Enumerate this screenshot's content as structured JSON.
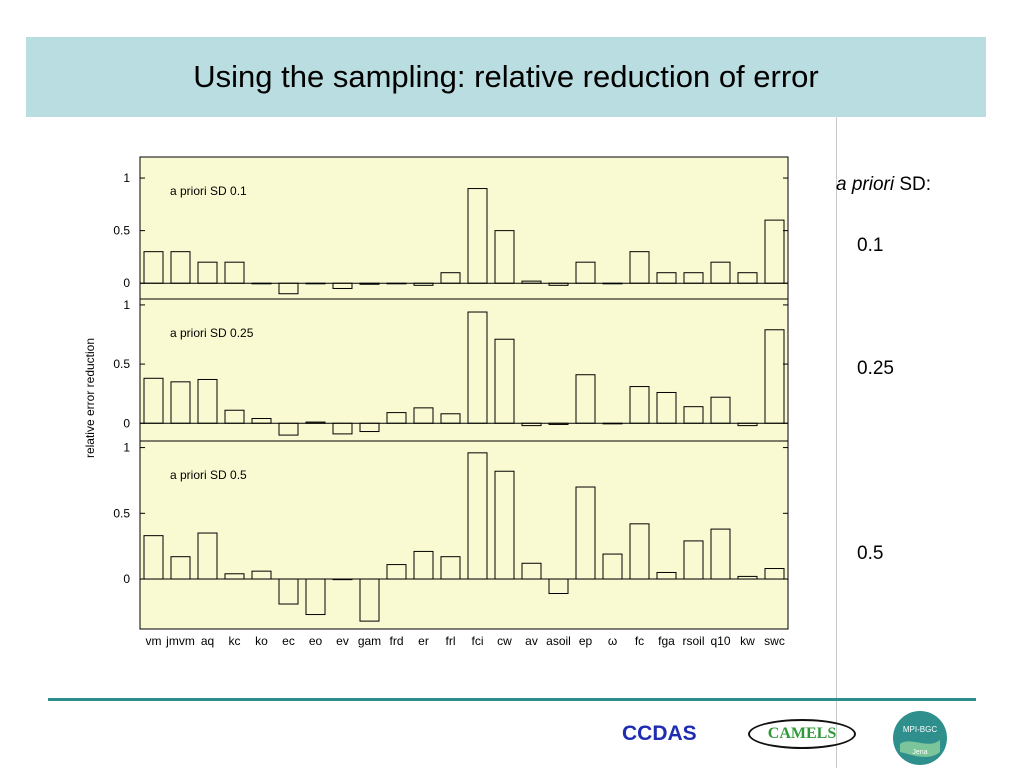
{
  "slide": {
    "title": "Using the sampling: relative reduction of error",
    "side_heading_italic": "a priori",
    "side_heading_rest": " SD:",
    "side_values": [
      "0.1",
      "0.25",
      "0.5"
    ]
  },
  "footer": {
    "ccdas": "CCDAS",
    "camels": "CAMELS",
    "mpi_line1": "MPI-BGC",
    "mpi_line2": "Jena"
  },
  "colors": {
    "title_band": "#b9dde0",
    "plot_background": "#fafad2",
    "footer_rule": "#2e8e8e",
    "ccdas_text": "#1f2db0",
    "camels_text": "#2f9a3a"
  },
  "chart_data": [
    {
      "type": "bar",
      "annotation": "a priori SD 0.1",
      "ylabel": "relative error reduction",
      "yticks": [
        "1",
        "0.5",
        "0"
      ],
      "ylim": [
        -0.15,
        1.2
      ],
      "categories": [
        "vm",
        "jmvm",
        "aq",
        "kc",
        "ko",
        "ec",
        "eo",
        "ev",
        "gam",
        "frd",
        "er",
        "frl",
        "fci",
        "cw",
        "av",
        "asoil",
        "ep",
        "ω",
        "fc",
        "fga",
        "rsoil",
        "q10",
        "kw",
        "swc"
      ],
      "values": [
        0.3,
        0.3,
        0.2,
        0.2,
        0,
        -0.1,
        0,
        -0.05,
        -0.01,
        0,
        -0.02,
        0.1,
        0.9,
        0.5,
        0.02,
        -0.02,
        0.2,
        0,
        0.3,
        0.1,
        0.1,
        0.2,
        0.1,
        0.6
      ]
    },
    {
      "type": "bar",
      "annotation": "a priori SD 0.25",
      "yticks": [
        "1",
        "0.5",
        "0"
      ],
      "ylim": [
        -0.15,
        1.05
      ],
      "categories": [
        "vm",
        "jmvm",
        "aq",
        "kc",
        "ko",
        "ec",
        "eo",
        "ev",
        "gam",
        "frd",
        "er",
        "frl",
        "fci",
        "cw",
        "av",
        "asoil",
        "ep",
        "ω",
        "fc",
        "fga",
        "rsoil",
        "q10",
        "kw",
        "swc"
      ],
      "values": [
        0.38,
        0.35,
        0.37,
        0.11,
        0.04,
        -0.1,
        0.01,
        -0.09,
        -0.07,
        0.09,
        0.13,
        0.08,
        0.94,
        0.71,
        -0.02,
        -0.01,
        0.41,
        0,
        0.31,
        0.26,
        0.14,
        0.22,
        -0.02,
        0.79
      ]
    },
    {
      "type": "bar",
      "annotation": "a priori SD 0.5",
      "yticks": [
        "1",
        "0.5",
        "0"
      ],
      "ylim": [
        -0.38,
        1.05
      ],
      "categories": [
        "vm",
        "jmvm",
        "aq",
        "kc",
        "ko",
        "ec",
        "eo",
        "ev",
        "gam",
        "frd",
        "er",
        "frl",
        "fci",
        "cw",
        "av",
        "asoil",
        "ep",
        "ω",
        "fc",
        "fga",
        "rsoil",
        "q10",
        "kw",
        "swc"
      ],
      "values": [
        0.33,
        0.17,
        0.35,
        0.04,
        0.06,
        -0.19,
        -0.27,
        0,
        -0.32,
        0.11,
        0.21,
        0.17,
        0.96,
        0.82,
        0.12,
        -0.11,
        0.7,
        0.19,
        0.42,
        0.05,
        0.29,
        0.38,
        0.02,
        0.08
      ]
    }
  ]
}
